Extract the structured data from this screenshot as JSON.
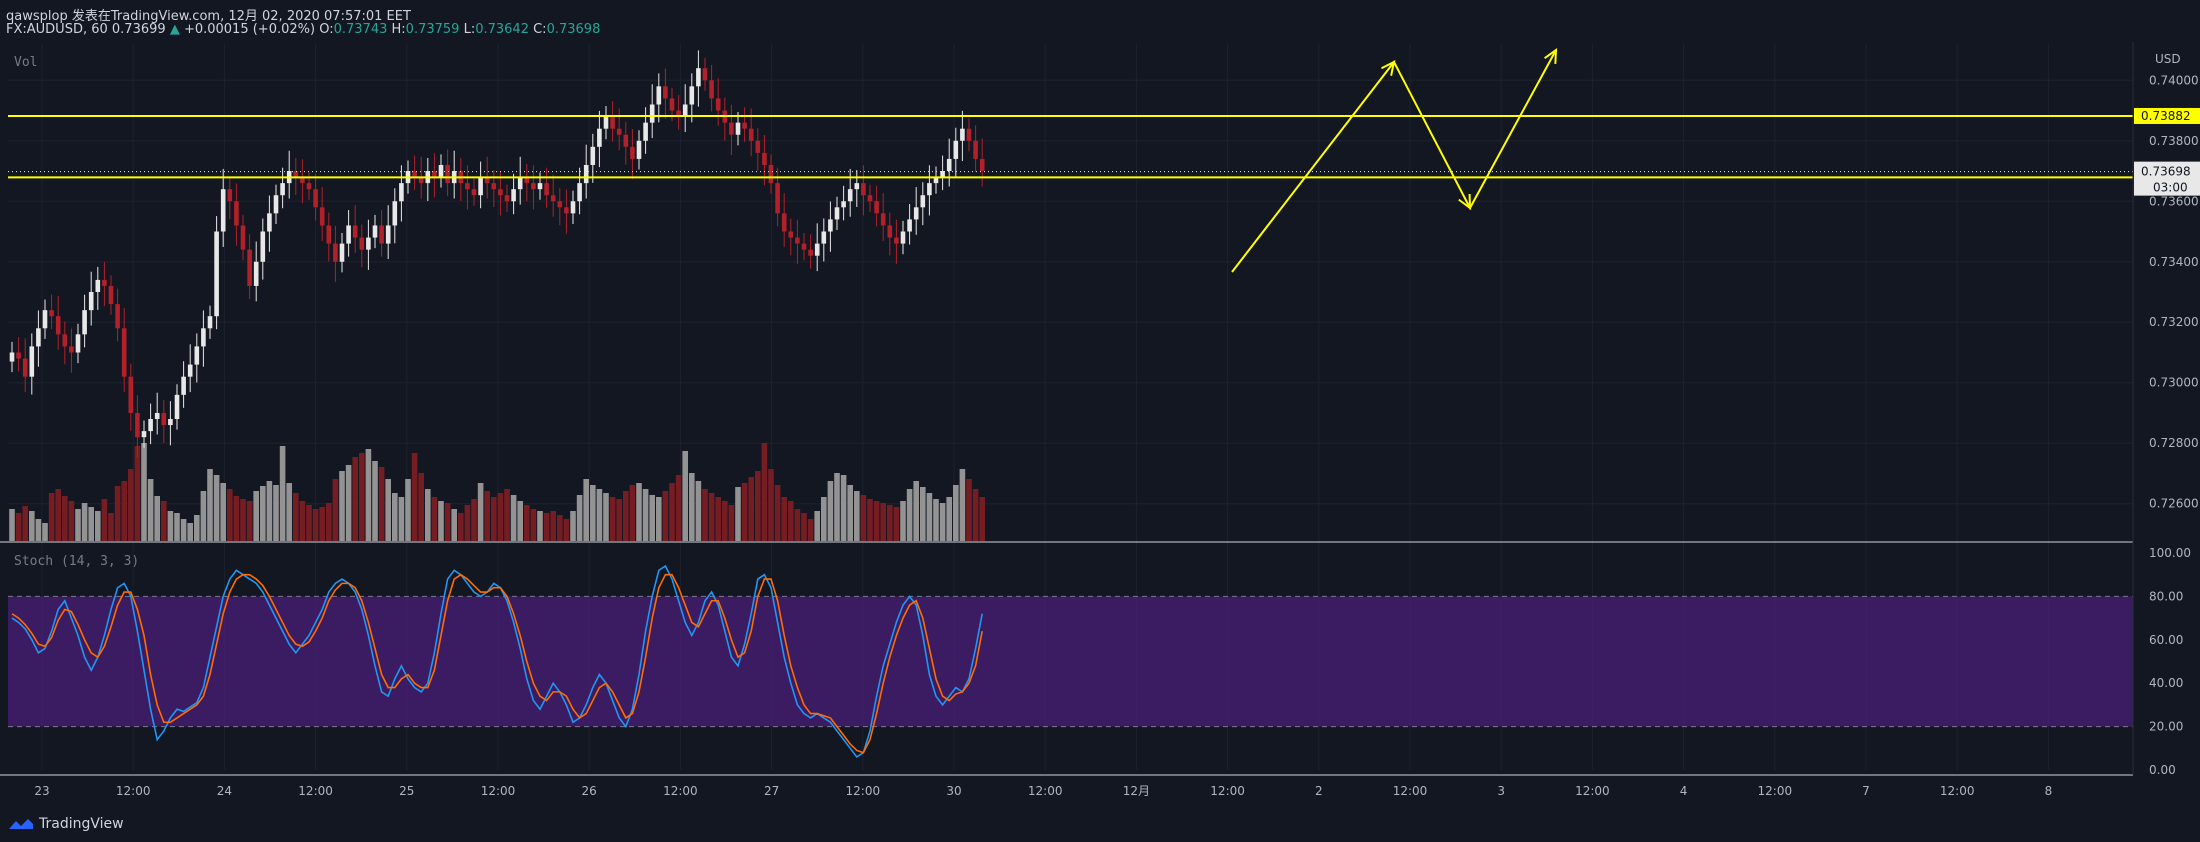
{
  "header": {
    "line1": "qawsplop 发表在TradingView.com, 12月 02, 2020 07:57:01 EET",
    "symbol": "FX:AUDUSD, 60",
    "last": "0.73699",
    "change_arrow": "▲",
    "change": "+0.00015 (+0.02%)",
    "o_label": "O:",
    "o_value": "0.73743",
    "h_label": "H:",
    "h_value": "0.73759",
    "l_label": "L:",
    "l_value": "0.73642",
    "c_label": "C:",
    "c_value": "0.73698"
  },
  "panes": {
    "volume_label": "Vol",
    "stoch_label": "Stoch (14, 3, 3)",
    "currency_label": "USD"
  },
  "brand": {
    "name": "TradingView",
    "icon": "tradingview-logo-icon"
  },
  "colors": {
    "background": "#131722",
    "up": "#e8e8e8",
    "down": "#b2202a",
    "level_line": "#ffff00",
    "stoch_k": "#2196f3",
    "stoch_d": "#ff6d00",
    "stoch_band": "#4a1f78"
  },
  "chart_data": [
    {
      "type": "candlestick",
      "title": "",
      "x_tick_labels": [
        "23",
        "12:00",
        "24",
        "12:00",
        "25",
        "12:00",
        "26",
        "12:00",
        "27",
        "12:00",
        "30",
        "12:00",
        "12月",
        "12:00",
        "2",
        "12:00",
        "3",
        "12:00",
        "4",
        "12:00",
        "7",
        "12:00",
        "8"
      ],
      "y_tick_labels": [
        "0.74000",
        "0.73800",
        "0.73600",
        "0.73400",
        "0.73200",
        "0.73000",
        "0.72800",
        "0.72600"
      ],
      "ylim": [
        0.7248,
        0.7412
      ],
      "levels": [
        {
          "value": 0.73882,
          "label": "0.73882",
          "style": "solid"
        },
        {
          "value": 0.73679,
          "label": "0.73679",
          "style": "solid"
        }
      ],
      "current_price": {
        "value": 0.73698,
        "label": "0.73698",
        "countdown": "03:00"
      },
      "close_series": [
        0.731,
        0.7308,
        0.7302,
        0.7312,
        0.7318,
        0.7324,
        0.7322,
        0.7316,
        0.7312,
        0.731,
        0.7316,
        0.7324,
        0.733,
        0.7334,
        0.7332,
        0.7326,
        0.7318,
        0.7302,
        0.729,
        0.7282,
        0.7284,
        0.7288,
        0.729,
        0.7286,
        0.7288,
        0.7296,
        0.7302,
        0.7306,
        0.7312,
        0.7318,
        0.7322,
        0.735,
        0.7364,
        0.736,
        0.7352,
        0.7344,
        0.7332,
        0.734,
        0.735,
        0.7356,
        0.7362,
        0.7366,
        0.737,
        0.7368,
        0.7366,
        0.7364,
        0.7358,
        0.7352,
        0.7346,
        0.734,
        0.7346,
        0.7352,
        0.7348,
        0.7344,
        0.7348,
        0.7352,
        0.7346,
        0.7352,
        0.736,
        0.7366,
        0.737,
        0.7368,
        0.7366,
        0.737,
        0.7368,
        0.7372,
        0.7366,
        0.737,
        0.7366,
        0.7364,
        0.7362,
        0.7368,
        0.7366,
        0.7364,
        0.7362,
        0.736,
        0.7364,
        0.7368,
        0.7366,
        0.7364,
        0.7366,
        0.7362,
        0.736,
        0.7358,
        0.7356,
        0.736,
        0.7366,
        0.7372,
        0.7378,
        0.7384,
        0.7388,
        0.7384,
        0.7382,
        0.7378,
        0.7374,
        0.738,
        0.7386,
        0.7392,
        0.7398,
        0.7394,
        0.739,
        0.7388,
        0.7392,
        0.7398,
        0.7404,
        0.74,
        0.7394,
        0.739,
        0.7386,
        0.7382,
        0.7386,
        0.7384,
        0.738,
        0.7376,
        0.7372,
        0.7366,
        0.7356,
        0.735,
        0.7348,
        0.7346,
        0.7344,
        0.7342,
        0.7346,
        0.735,
        0.7354,
        0.7358,
        0.736,
        0.7364,
        0.7366,
        0.7362,
        0.736,
        0.7356,
        0.7352,
        0.7348,
        0.7346,
        0.735,
        0.7354,
        0.7358,
        0.7362,
        0.7366,
        0.7368,
        0.737,
        0.7374,
        0.738,
        0.7384,
        0.738,
        0.7374,
        0.737
      ]
    },
    {
      "type": "bar",
      "title": "",
      "series_name": "Vol",
      "values_relative": [
        0.32,
        0.28,
        0.35,
        0.3,
        0.22,
        0.18,
        0.48,
        0.52,
        0.45,
        0.4,
        0.32,
        0.38,
        0.34,
        0.3,
        0.42,
        0.28,
        0.55,
        0.6,
        0.72,
        0.95,
        0.98,
        0.62,
        0.45,
        0.4,
        0.3,
        0.28,
        0.22,
        0.18,
        0.26,
        0.5,
        0.72,
        0.66,
        0.58,
        0.52,
        0.45,
        0.42,
        0.4,
        0.5,
        0.55,
        0.6,
        0.56,
        0.95,
        0.58,
        0.48,
        0.4,
        0.36,
        0.32,
        0.34,
        0.38,
        0.62,
        0.7,
        0.76,
        0.84,
        0.88,
        0.92,
        0.8,
        0.74,
        0.62,
        0.48,
        0.44,
        0.62,
        0.88,
        0.68,
        0.52,
        0.44,
        0.4,
        0.38,
        0.32,
        0.28,
        0.36,
        0.42,
        0.58,
        0.5,
        0.44,
        0.48,
        0.52,
        0.46,
        0.4,
        0.36,
        0.32,
        0.3,
        0.28,
        0.3,
        0.26,
        0.22,
        0.3,
        0.46,
        0.62,
        0.56,
        0.52,
        0.48,
        0.44,
        0.42,
        0.5,
        0.56,
        0.58,
        0.52,
        0.46,
        0.44,
        0.5,
        0.58,
        0.66,
        0.9,
        0.68,
        0.6,
        0.52,
        0.48,
        0.44,
        0.4,
        0.36,
        0.54,
        0.58,
        0.64,
        0.7,
        0.98,
        0.72,
        0.56,
        0.44,
        0.4,
        0.32,
        0.28,
        0.22,
        0.3,
        0.44,
        0.6,
        0.68,
        0.66,
        0.56,
        0.5,
        0.46,
        0.42,
        0.4,
        0.38,
        0.36,
        0.34,
        0.4,
        0.52,
        0.6,
        0.54,
        0.48,
        0.42,
        0.38,
        0.44,
        0.56,
        0.72,
        0.62,
        0.52,
        0.44
      ]
    },
    {
      "type": "line",
      "title": "Stoch (14, 3, 3)",
      "y_tick_labels": [
        "100.00",
        "80.00",
        "60.00",
        "40.00",
        "20.00",
        "0.00"
      ],
      "ylim": [
        0,
        100
      ],
      "band": [
        20,
        80
      ],
      "series": [
        {
          "name": "%K",
          "values": [
            70,
            68,
            65,
            60,
            54,
            56,
            64,
            74,
            78,
            70,
            62,
            52,
            46,
            52,
            62,
            74,
            84,
            86,
            80,
            64,
            46,
            28,
            14,
            18,
            24,
            28,
            27,
            29,
            31,
            38,
            52,
            66,
            80,
            88,
            92,
            90,
            88,
            86,
            82,
            76,
            70,
            64,
            58,
            54,
            58,
            62,
            68,
            74,
            82,
            86,
            88,
            86,
            82,
            74,
            62,
            48,
            36,
            34,
            42,
            48,
            42,
            38,
            36,
            40,
            54,
            72,
            88,
            92,
            90,
            86,
            82,
            80,
            82,
            86,
            84,
            78,
            68,
            56,
            42,
            32,
            28,
            34,
            40,
            36,
            30,
            22,
            24,
            30,
            38,
            44,
            40,
            32,
            24,
            20,
            28,
            44,
            64,
            80,
            92,
            94,
            88,
            78,
            68,
            62,
            68,
            78,
            82,
            76,
            64,
            52,
            48,
            58,
            72,
            88,
            90,
            84,
            68,
            52,
            40,
            30,
            26,
            24,
            26,
            24,
            22,
            18,
            14,
            10,
            6,
            8,
            18,
            34,
            48,
            58,
            68,
            76,
            80,
            76,
            62,
            44,
            34,
            30,
            34,
            38,
            36,
            42,
            56,
            72,
            82,
            86,
            88,
            84,
            78,
            72,
            70
          ]
        },
        {
          "name": "%D",
          "values": [
            72,
            70,
            67,
            63,
            58,
            57,
            61,
            69,
            74,
            73,
            67,
            60,
            54,
            52,
            57,
            66,
            76,
            82,
            82,
            74,
            62,
            44,
            30,
            22,
            22,
            24,
            26,
            28,
            30,
            34,
            44,
            58,
            72,
            82,
            88,
            90,
            90,
            88,
            85,
            80,
            74,
            68,
            62,
            58,
            57,
            59,
            64,
            70,
            78,
            83,
            86,
            86,
            84,
            78,
            68,
            56,
            44,
            38,
            38,
            42,
            44,
            40,
            38,
            38,
            46,
            62,
            78,
            88,
            90,
            88,
            85,
            82,
            82,
            84,
            84,
            80,
            72,
            62,
            50,
            40,
            34,
            32,
            36,
            36,
            34,
            28,
            24,
            26,
            32,
            38,
            40,
            36,
            30,
            24,
            26,
            36,
            52,
            70,
            84,
            90,
            90,
            84,
            76,
            68,
            66,
            72,
            78,
            78,
            70,
            60,
            52,
            54,
            64,
            80,
            88,
            88,
            78,
            62,
            48,
            38,
            30,
            26,
            26,
            25,
            24,
            20,
            16,
            12,
            9,
            8,
            14,
            26,
            40,
            52,
            62,
            70,
            76,
            78,
            70,
            56,
            42,
            34,
            32,
            35,
            36,
            40,
            48,
            64,
            76,
            82,
            86,
            86,
            82,
            76,
            72
          ]
        }
      ]
    }
  ]
}
